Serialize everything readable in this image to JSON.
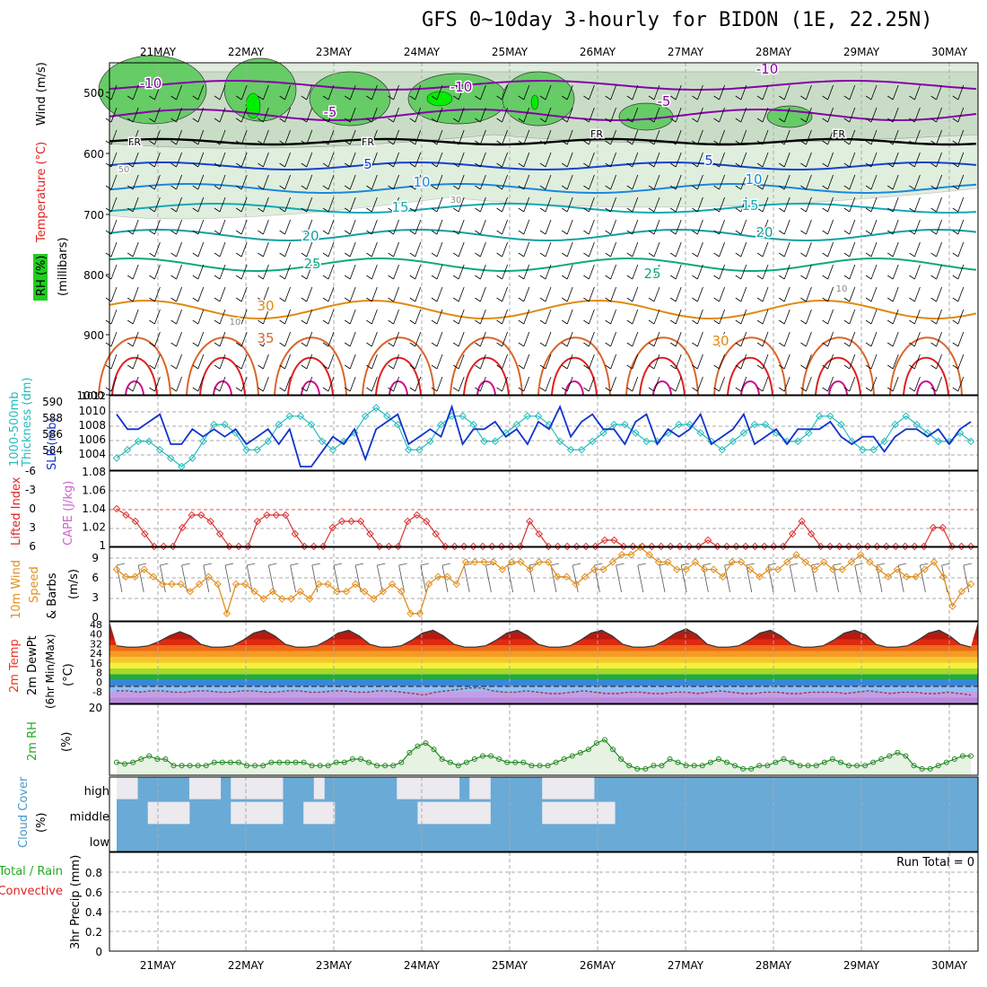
{
  "title": "GFS 0~10day 3-hourly for BIDON (1E, 22.25N)",
  "dates": [
    "21MAY",
    "22MAY",
    "23MAY",
    "24MAY",
    "25MAY",
    "26MAY",
    "27MAY",
    "28MAY",
    "29MAY",
    "30MAY"
  ],
  "colors": {
    "rh_green": "#66cc66",
    "rh_light": "#dfeedd",
    "temp_purple": "#8800aa",
    "temp_blue": "#1144cc",
    "temp_teal": "#00a0a0",
    "temp_orange": "#e08a10",
    "temp_red": "#dd2222",
    "slp": "#1133cc",
    "thickness": "#22bbbb",
    "lifted": "#dd3333",
    "wind10m": "#e09020",
    "rh2m": "#228822",
    "cloud": "#6aaad6",
    "cloud_clear": "#ece9ef"
  },
  "panels": {
    "upper": {
      "ylabel_rh": "RH (%)",
      "ylabel_temp": "Temperature (°C)",
      "ylabel_wind": "Wind (m/s)",
      "ylabel_unit": "(millibars)",
      "levels": [
        "500",
        "600",
        "700",
        "800",
        "900",
        "1000"
      ],
      "contour_labels": [
        "-10",
        "-10",
        "-10",
        "-5",
        "-5",
        "FR",
        "FR",
        "FR",
        "FR",
        "5",
        "5",
        "10",
        "10",
        "15",
        "15",
        "20",
        "20",
        "25",
        "25",
        "30",
        "30",
        "35",
        "10",
        "30",
        "50",
        "10"
      ]
    },
    "slp": {
      "ylabel_left": "1000-500mb",
      "ylabel_left2": "Thickness (dm)",
      "ylabel_right": "SLP (mb)",
      "left_ticks": [
        "590",
        "588",
        "586",
        "584"
      ],
      "right_ticks": [
        "1010",
        "1008",
        "1006",
        "1004"
      ],
      "right_top": "1012"
    },
    "li": {
      "ylabel1": "Lifted Index",
      "ylabel2": "CAPE (J/kg)",
      "left_ticks": [
        "-6",
        "-3",
        "0",
        "3",
        "6"
      ],
      "right_ticks": [
        "1.08",
        "1.06",
        "1.04",
        "1.02",
        "1"
      ]
    },
    "wind": {
      "ylabel1": "10m Wind",
      "ylabel2": "Speed",
      "ylabel3": "& Barbs",
      "unit": "(m/s)",
      "ticks": [
        "9",
        "6",
        "3",
        "0"
      ]
    },
    "temp": {
      "ylabel1": "2m Temp",
      "ylabel2": "2m DewPt",
      "ylabel3": "(6hr Min/Max)",
      "unit": "(°C)",
      "ticks": [
        "48",
        "40",
        "32",
        "24",
        "16",
        "8",
        "0",
        "-8"
      ]
    },
    "rh": {
      "ylabel": "2m RH",
      "unit": "(%)",
      "ticks": [
        "20"
      ]
    },
    "cloud": {
      "ylabel": "Cloud Cover",
      "unit": "(%)",
      "rows": [
        "high",
        "middle",
        "low"
      ]
    },
    "precip": {
      "ylabel1": "Total / Rain",
      "ylabel2": "Convective",
      "ylabel3": "3hr Precip (mm)",
      "ticks": [
        "0.8",
        "0.6",
        "0.4",
        "0.2",
        "0"
      ],
      "run_total": "Run Total = 0"
    }
  },
  "chart_data": [
    {
      "type": "line",
      "name": "SLP",
      "ylim": [
        1003,
        1012
      ],
      "values": [
        1010,
        1008,
        1008,
        1009,
        1010,
        1006,
        1006,
        1008,
        1007,
        1008,
        1007,
        1008,
        1006,
        1007,
        1008,
        1006,
        1008,
        1002,
        1003,
        1005,
        1007,
        1006,
        1008,
        1004,
        1008,
        1009,
        1010,
        1006,
        1007,
        1008,
        1007,
        1011,
        1006,
        1008,
        1008,
        1009,
        1007,
        1008,
        1006,
        1009,
        1008,
        1011,
        1007,
        1009,
        1010,
        1008,
        1008,
        1006,
        1009,
        1010,
        1006,
        1008,
        1007,
        1008,
        1010,
        1006,
        1007,
        1008,
        1010,
        1006,
        1007,
        1008,
        1006,
        1008,
        1008,
        1008,
        1009,
        1007,
        1006,
        1007,
        1007,
        1005,
        1007,
        1008,
        1008,
        1007,
        1008,
        1006,
        1008,
        1009
      ]
    },
    {
      "type": "line",
      "name": "1000-500mb Thickness",
      "ylim": [
        583,
        591
      ],
      "values": [
        584,
        585,
        586,
        586,
        585,
        584,
        583,
        584,
        586,
        588,
        588,
        587,
        585,
        585,
        586,
        588,
        589,
        589,
        588,
        586,
        585,
        586,
        587,
        589,
        590,
        589,
        588,
        585,
        585,
        586,
        588,
        589,
        589,
        588,
        586,
        586,
        587,
        588,
        589,
        589,
        588,
        586,
        585,
        585,
        586,
        587,
        588,
        588,
        587,
        586,
        586,
        587,
        588,
        588,
        587,
        586,
        585,
        586,
        587,
        588,
        588,
        587,
        586,
        586,
        587,
        589,
        589,
        588,
        586,
        585,
        585,
        586,
        588,
        589,
        588,
        587,
        586,
        586,
        587,
        586
      ]
    },
    {
      "type": "line",
      "name": "Lifted Index",
      "ylim": [
        -6,
        6
      ],
      "values": [
        0,
        1,
        2,
        4,
        6,
        6,
        6,
        3,
        1,
        1,
        2,
        4,
        6,
        6,
        6,
        2,
        1,
        1,
        1,
        4,
        6,
        6,
        6,
        3,
        2,
        2,
        2,
        4,
        6,
        6,
        6,
        2,
        1,
        2,
        4,
        6,
        6,
        6,
        6,
        6,
        6,
        6,
        6,
        6,
        2,
        4,
        6,
        6,
        6,
        6,
        6,
        6,
        5,
        5,
        6,
        6,
        6,
        6,
        6,
        6,
        6,
        6,
        6,
        5,
        6,
        6,
        6,
        6,
        6,
        6,
        6,
        6,
        4,
        2,
        4,
        6,
        6,
        6,
        6,
        6,
        6,
        6,
        6,
        6,
        6,
        6,
        6,
        3,
        3,
        6,
        6,
        6
      ]
    },
    {
      "type": "line",
      "name": "10m Wind Speed",
      "ylim": [
        0,
        10
      ],
      "values": [
        7,
        6,
        6,
        7,
        6,
        5,
        5,
        5,
        4,
        5,
        6,
        5,
        1,
        5,
        5,
        4,
        3,
        4,
        3,
        3,
        4,
        3,
        5,
        5,
        4,
        4,
        5,
        4,
        3,
        4,
        5,
        4,
        1,
        1,
        5,
        6,
        6,
        5,
        8,
        8,
        8,
        8,
        7,
        8,
        8,
        7,
        8,
        8,
        6,
        6,
        5,
        6,
        7,
        7,
        8,
        9,
        9,
        10,
        9,
        8,
        8,
        7,
        7,
        8,
        7,
        7,
        6,
        8,
        8,
        7,
        6,
        7,
        7,
        8,
        9,
        8,
        7,
        8,
        7,
        7,
        8,
        9,
        8,
        7,
        6,
        7,
        6,
        6,
        7,
        8,
        6,
        2,
        4,
        5
      ]
    },
    {
      "type": "area",
      "name": "2m Temp",
      "ylim": [
        -10,
        48
      ],
      "values": [
        31,
        30,
        30,
        31,
        34,
        38,
        41,
        38,
        32,
        30,
        30,
        31,
        35,
        40,
        42,
        38,
        32,
        30,
        30,
        31,
        35,
        40,
        42,
        38,
        32,
        30,
        30,
        31,
        35,
        40,
        42,
        38,
        32,
        30,
        30,
        31,
        35,
        40,
        42,
        38,
        32,
        30,
        30,
        31,
        35,
        40,
        42,
        38,
        32,
        30,
        30,
        31,
        35,
        40,
        43,
        39,
        32,
        30,
        30,
        31,
        35,
        40,
        42,
        38,
        32,
        30,
        30,
        31,
        35,
        40,
        42,
        39,
        32,
        30,
        30,
        31,
        35,
        40,
        42,
        38,
        32,
        30
      ]
    },
    {
      "type": "line",
      "name": "2m DewPt",
      "ylim": [
        -10,
        48
      ],
      "values": [
        -1,
        -1,
        -2,
        -1,
        -1,
        -2,
        -2,
        -1,
        -1,
        -2,
        -2,
        -1,
        -1,
        -2,
        -2,
        -1,
        -1,
        -2,
        -2,
        -1,
        -1,
        -2,
        -2,
        -1,
        -1,
        -2,
        -3,
        -4,
        -2,
        -1,
        0,
        1,
        1,
        -1,
        -2,
        -2,
        -1,
        -2,
        -3,
        -3,
        -2,
        -1,
        -2,
        -3,
        -3,
        -2,
        -2,
        -3,
        -3,
        -2,
        -2,
        -3,
        -2,
        -1,
        -2,
        -3,
        -3,
        -2,
        -2,
        -3,
        -3,
        -2,
        -2,
        -2,
        -3,
        -2,
        -1,
        -2,
        -3,
        -2,
        -2,
        -3,
        -3,
        -2,
        -3,
        -4
      ]
    },
    {
      "type": "area",
      "name": "2m RH",
      "ylim": [
        0,
        22
      ],
      "values": [
        4,
        3.5,
        4,
        5,
        6,
        5,
        5,
        3,
        3,
        3,
        3,
        3,
        4,
        4,
        4,
        4,
        3,
        3,
        3,
        4,
        4,
        4,
        4,
        4,
        3,
        3,
        3,
        4,
        4,
        5,
        5,
        4,
        3,
        3,
        3,
        4,
        7,
        9,
        10,
        8,
        5,
        4,
        3,
        4,
        5,
        6,
        6,
        5,
        4,
        4,
        4,
        3,
        3,
        3,
        4,
        5,
        6,
        7,
        8,
        10,
        11,
        8,
        5,
        3,
        2,
        2,
        3,
        3,
        5,
        4,
        3,
        3,
        3,
        4,
        5,
        4,
        3,
        2,
        2,
        3,
        3,
        4,
        5,
        4,
        3,
        3,
        3,
        4,
        5,
        4,
        3,
        3,
        3,
        4,
        5,
        6,
        7,
        6,
        3,
        2,
        2,
        3,
        4,
        5,
        6,
        6
      ]
    },
    {
      "type": "heatmap",
      "name": "Cloud Cover",
      "rows": [
        "high",
        "middle",
        "low"
      ],
      "high_clear": [
        1,
        1,
        0,
        0,
        0,
        0,
        0,
        1,
        1,
        1,
        0,
        1,
        1,
        1,
        1,
        1,
        0,
        0,
        0,
        1,
        0,
        0,
        0,
        0,
        0,
        0,
        0,
        1,
        1,
        1,
        1,
        1,
        1,
        0,
        1,
        1,
        0,
        0,
        0,
        0,
        0,
        1,
        1,
        1,
        1,
        1,
        0,
        0,
        0,
        0,
        0,
        0,
        0,
        0,
        0,
        0,
        0,
        0,
        0,
        0,
        0,
        0,
        0,
        0,
        0,
        0,
        0,
        0,
        0,
        0,
        0,
        0,
        0,
        0,
        0,
        0,
        0,
        0,
        0,
        0,
        0,
        0,
        0
      ],
      "mid_clear": [
        0,
        0,
        0,
        1,
        1,
        1,
        1,
        0,
        0,
        0,
        0,
        1,
        1,
        1,
        1,
        1,
        0,
        0,
        1,
        1,
        1,
        0,
        0,
        0,
        0,
        0,
        0,
        0,
        0,
        1,
        1,
        1,
        1,
        1,
        1,
        1,
        0,
        0,
        0,
        0,
        0,
        1,
        1,
        1,
        1,
        1,
        1,
        1,
        0,
        0,
        0,
        0,
        0,
        0,
        0,
        0,
        0,
        0,
        0,
        0,
        0,
        0,
        0,
        0,
        0,
        0,
        0,
        0,
        0,
        0,
        0,
        0,
        0,
        0,
        0,
        0,
        0,
        0,
        0,
        0,
        0,
        0,
        0
      ],
      "low_clear": [
        0,
        0,
        0,
        0,
        0,
        0,
        0,
        0,
        0,
        0,
        0,
        0,
        0,
        0,
        0,
        0,
        0,
        0,
        0,
        0,
        0,
        0,
        0,
        0,
        0,
        0,
        0,
        0,
        0,
        0,
        0,
        0,
        0,
        0,
        0,
        0,
        0,
        0,
        0,
        0,
        0,
        0,
        0,
        0,
        0,
        0,
        0,
        0,
        0,
        0,
        0,
        0,
        0,
        0,
        0,
        0,
        0,
        0,
        0,
        0,
        0,
        0,
        0,
        0,
        0,
        0,
        0,
        0,
        0,
        0,
        0,
        0,
        0,
        0,
        0,
        0,
        0,
        0,
        0,
        0,
        0,
        0,
        0
      ]
    },
    {
      "type": "bar",
      "name": "3hr Precip",
      "ylim": [
        0,
        1
      ],
      "values": []
    }
  ]
}
